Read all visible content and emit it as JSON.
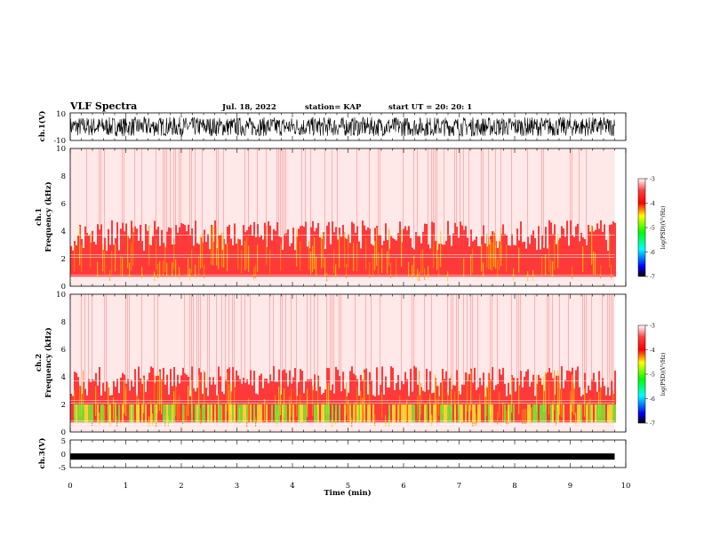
{
  "header": {
    "title": "VLF Spectra",
    "date": "Jul. 18, 2022",
    "station": "station= KAP",
    "start": "start UT =  20: 20: 1"
  },
  "chart_data": [
    {
      "type": "line",
      "name": "ch1-waveform",
      "ylabel": "ch.1(V)",
      "ylim": [
        -10,
        10
      ],
      "yticks": [
        "10",
        "-10"
      ],
      "xlim": [
        0,
        10
      ],
      "data_extent_min": 9.8,
      "amplitude_range": [
        -7,
        7
      ]
    },
    {
      "type": "heatmap",
      "name": "ch1-spectrogram",
      "ylabel_top": "ch.1",
      "ylabel": "Frequency (kHz)",
      "ylim": [
        0,
        10
      ],
      "yticks": [
        "0",
        "2",
        "4",
        "6",
        "8",
        "10"
      ],
      "colorbar": {
        "label": "log(PSD)(V²/Hz)",
        "range": [
          -7,
          -3
        ],
        "ticks": [
          "-3",
          "-4",
          "-5",
          "-6",
          "-7"
        ]
      }
    },
    {
      "type": "heatmap",
      "name": "ch2-spectrogram",
      "ylabel_top": "ch.2",
      "ylabel": "Frequency (kHz)",
      "ylim": [
        0,
        10
      ],
      "yticks": [
        "0",
        "2",
        "4",
        "6",
        "8",
        "10"
      ],
      "colorbar": {
        "label": "log(PSD)(V²/Hz)",
        "range": [
          -7,
          -3
        ],
        "ticks": [
          "-3",
          "-4",
          "-5",
          "-6",
          "-7"
        ]
      }
    },
    {
      "type": "line",
      "name": "ch3-waveform",
      "ylabel": "ch.3(V)",
      "ylim": [
        -5,
        5
      ],
      "yticks": [
        "5",
        "0",
        "-5"
      ],
      "level": -1,
      "xlabel": "Time (min)",
      "xlim": [
        0,
        10
      ],
      "xticks": [
        "0",
        "1",
        "2",
        "3",
        "4",
        "5",
        "6",
        "7",
        "8",
        "9",
        "10"
      ]
    }
  ],
  "colors": {
    "low_psd": "#ffffff",
    "mid_psd": "#ff0000",
    "high_psd": "#ffff00",
    "peak_psd": "#00ff00"
  }
}
